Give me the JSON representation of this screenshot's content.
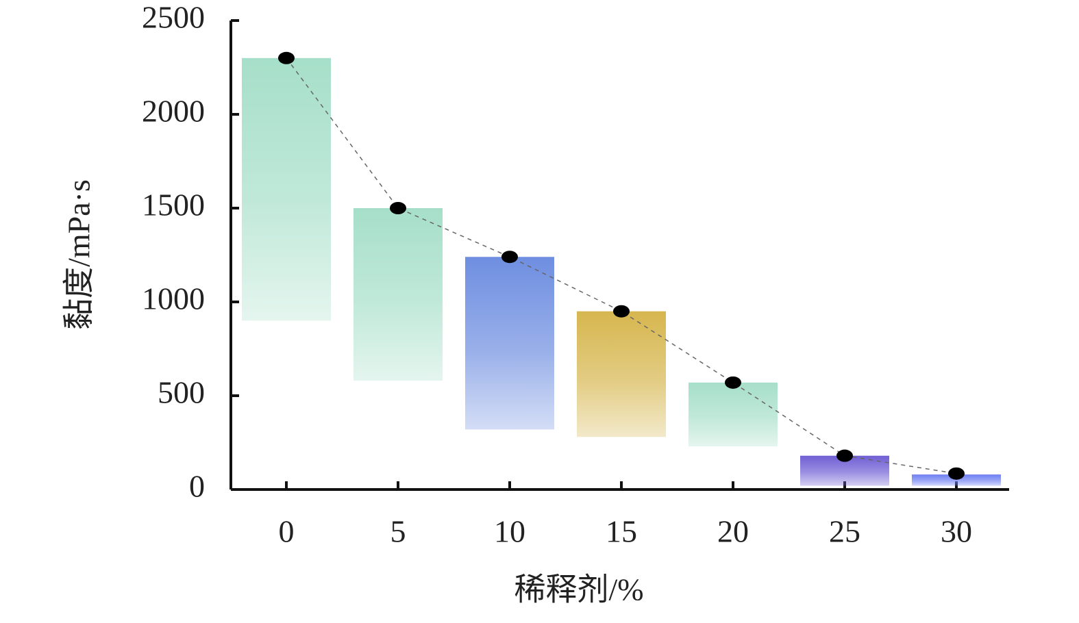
{
  "chart_data": {
    "type": "floating_bar",
    "categories": [
      "0",
      "5",
      "10",
      "15",
      "20",
      "25",
      "30"
    ],
    "bar_top": [
      2300,
      1500,
      1240,
      950,
      570,
      180,
      80
    ],
    "bar_bottom": [
      900,
      580,
      320,
      280,
      230,
      20,
      20
    ],
    "points": [
      2300,
      1500,
      1240,
      950,
      570,
      180,
      85
    ],
    "bar_colors": [
      "#a6dfc9",
      "#a6dfc9",
      "#6e8ee0",
      "#d6b64e",
      "#a6dfc9",
      "#6f5fd4",
      "#6f80f2"
    ],
    "point_color": "#000000",
    "ylim": [
      0,
      2500
    ],
    "yticks": [
      0,
      500,
      1000,
      1500,
      2000,
      2500
    ],
    "xlabel": "稀释剂/%",
    "ylabel": "黏度/mPa·s"
  }
}
